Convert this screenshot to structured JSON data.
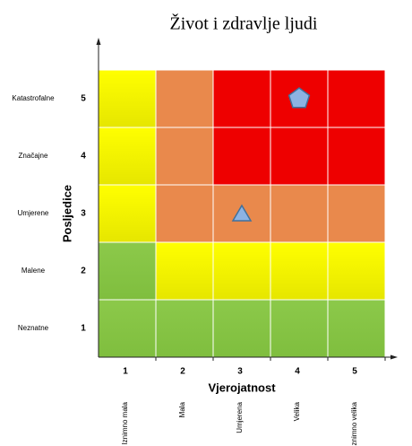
{
  "title": "Život i zdravlje ljudi",
  "y_axis_label": "Posljedice",
  "x_axis_label": "Vjerojatnost",
  "rows": [
    {
      "number": "5",
      "label": "Katastrofalne"
    },
    {
      "number": "4",
      "label": "Značajne"
    },
    {
      "number": "3",
      "label": "Umjerene"
    },
    {
      "number": "2",
      "label": "Malene"
    },
    {
      "number": "1",
      "label": "Neznatne"
    }
  ],
  "columns": [
    {
      "number": "1",
      "label": "Iznimno mala"
    },
    {
      "number": "2",
      "label": "Mala"
    },
    {
      "number": "3",
      "label": "Umjerena"
    },
    {
      "number": "4",
      "label": "Velika"
    },
    {
      "number": "5",
      "label": "Iznimno velika"
    }
  ],
  "cells": [
    [
      "yellow",
      "orange",
      "red",
      "red",
      "red"
    ],
    [
      "yellow",
      "orange",
      "red",
      "red",
      "red"
    ],
    [
      "yellow",
      "orange",
      "orange",
      "orange",
      "orange"
    ],
    [
      "green",
      "yellow",
      "yellow",
      "yellow",
      "yellow"
    ],
    [
      "green",
      "green",
      "green",
      "green",
      "green"
    ]
  ],
  "markers": [
    {
      "shape": "pentagon",
      "row": 0,
      "column": 3
    },
    {
      "shape": "triangle",
      "row": 2,
      "column": 2
    }
  ]
}
